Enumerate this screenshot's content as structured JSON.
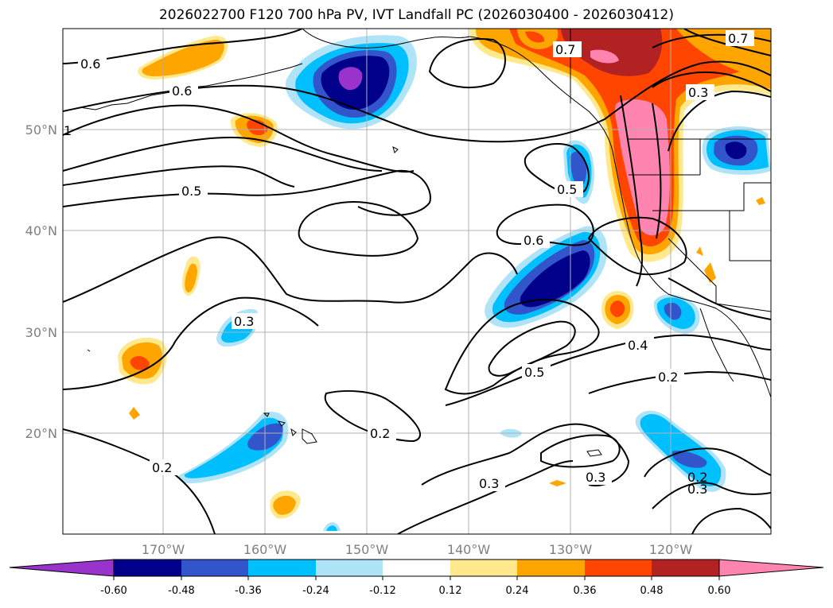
{
  "title": "2026022700 F120 700 hPa PV, IVT Landfall PC (2026030400 - 2026030412)",
  "lon_labels": [
    "170°W",
    "160°W",
    "150°W",
    "140°W",
    "130°W",
    "120°W"
  ],
  "lat_labels": [
    "50°N",
    "40°N",
    "30°N",
    "20°N"
  ],
  "contour_labels": [
    "0.6",
    "0.6",
    "0.7",
    "0.7",
    "0.3",
    "1",
    "0.5",
    "0.5",
    "0.6",
    "0.3",
    "0.4",
    "0.5",
    "0.2",
    "0.2",
    "0.2",
    "0.3",
    "0.3",
    "0.2",
    "0.3"
  ],
  "colorbar": {
    "ticks": [
      "-0.60",
      "-0.48",
      "-0.36",
      "-0.24",
      "-0.12",
      "0.12",
      "0.24",
      "0.36",
      "0.48",
      "0.60"
    ],
    "colors": [
      "#9933cc",
      "#00008b",
      "#3355cc",
      "#00bfff",
      "#aee3f8",
      "#ffffff",
      "#ffe98c",
      "#ffa500",
      "#ff4500",
      "#b22222",
      "#ff85b0"
    ]
  },
  "fill_colors": {
    "neg_light": "#aee3f8",
    "neg_mid": "#00bfff",
    "neg_blue": "#3355cc",
    "neg_navy": "#00008b",
    "neg_purple": "#9933cc",
    "pos_yellow": "#ffe98c",
    "pos_orange": "#ffa500",
    "pos_red": "#ff4500",
    "pos_dark": "#b22222",
    "pos_pink": "#ff85b0"
  }
}
